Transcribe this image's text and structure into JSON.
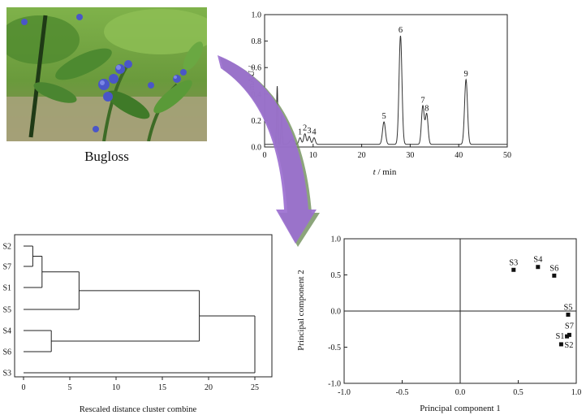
{
  "photo": {
    "caption": "Bugloss",
    "colors": {
      "leaf": "#5f9b3a",
      "leaf_dark": "#2f5e22",
      "flower": "#4a56c8",
      "soil": "#b9b08c"
    }
  },
  "arrow": {
    "color": "#9b6fd0",
    "edge_color": "#6f8f5a"
  },
  "chart_data": [
    {
      "id": "chromatogram",
      "type": "line",
      "xlabel_var": "t",
      "xlabel_unit": " / min",
      "ylabel": "mAU / ",
      "xlim": [
        0,
        50
      ],
      "ylim": [
        0,
        1.0
      ],
      "xticks": [
        0,
        10,
        20,
        30,
        40,
        50
      ],
      "yticks": [
        0.0,
        0.2,
        0.4,
        0.6,
        0.8,
        1.0
      ],
      "ytick_labels": [
        "0.0",
        "0.2",
        "0.4",
        "0.6",
        "0.8",
        "1.0"
      ],
      "baseline": 0.02,
      "peaks": [
        {
          "label": "",
          "rt": 2.6,
          "height": 0.44,
          "width": 0.12
        },
        {
          "label": "",
          "rt": 3.5,
          "height": 0.22,
          "width": 0.12
        },
        {
          "label": "",
          "rt": 5.6,
          "height": 0.04,
          "width": 0.4
        },
        {
          "label": "1",
          "rt": 7.3,
          "height": 0.05,
          "width": 0.25
        },
        {
          "label": "2",
          "rt": 8.3,
          "height": 0.08,
          "width": 0.25
        },
        {
          "label": "3",
          "rt": 9.2,
          "height": 0.06,
          "width": 0.25
        },
        {
          "label": "4",
          "rt": 10.2,
          "height": 0.05,
          "width": 0.25
        },
        {
          "label": "5",
          "rt": 24.6,
          "height": 0.17,
          "width": 0.3
        },
        {
          "label": "6",
          "rt": 28.0,
          "height": 0.82,
          "width": 0.3
        },
        {
          "label": "7",
          "rt": 32.6,
          "height": 0.29,
          "width": 0.28
        },
        {
          "label": "8",
          "rt": 33.4,
          "height": 0.23,
          "width": 0.28
        },
        {
          "label": "9",
          "rt": 41.5,
          "height": 0.49,
          "width": 0.3
        }
      ]
    },
    {
      "id": "dendrogram",
      "type": "dendrogram",
      "xlabel": "Rescaled distance cluster combine",
      "xlim": [
        0,
        25
      ],
      "xticks": [
        0,
        5,
        10,
        15,
        20,
        25
      ],
      "leaves": [
        "S2",
        "S7",
        "S1",
        "S5",
        "S4",
        "S6",
        "S3"
      ],
      "merges": [
        {
          "a": "S2",
          "b": "S7",
          "distance": 1
        },
        {
          "a": "S2+S7",
          "b": "S1",
          "distance": 2
        },
        {
          "a": "S4",
          "b": "S6",
          "distance": 3
        },
        {
          "a": "S2+S7+S1",
          "b": "S5",
          "distance": 6
        },
        {
          "a": "S2+S7+S1+S5",
          "b": "S4+S6",
          "distance": 19
        },
        {
          "a": "all",
          "b": "S3",
          "distance": 25
        }
      ]
    },
    {
      "id": "pca",
      "type": "scatter",
      "xlabel": "Principal component 1",
      "ylabel": "Principal component 2",
      "xlim": [
        -1.0,
        1.0
      ],
      "ylim": [
        -1.0,
        1.0
      ],
      "xticks": [
        -1.0,
        -0.5,
        0.0,
        0.5,
        1.0
      ],
      "yticks": [
        -1.0,
        -0.5,
        0.0,
        0.5,
        1.0
      ],
      "xtick_labels": [
        "-1.0",
        "-0.5",
        "0.0",
        "0.5",
        "1.0"
      ],
      "ytick_labels": [
        "-1.0",
        "-0.5",
        "0.0",
        "0.5",
        "1.0"
      ],
      "points": [
        {
          "label": "S3",
          "x": 0.46,
          "y": 0.57
        },
        {
          "label": "S4",
          "x": 0.67,
          "y": 0.61
        },
        {
          "label": "S6",
          "x": 0.81,
          "y": 0.49
        },
        {
          "label": "S5",
          "x": 0.93,
          "y": -0.05
        },
        {
          "label": "S7",
          "x": 0.94,
          "y": -0.33
        },
        {
          "label": "S1",
          "x": 0.92,
          "y": -0.35
        },
        {
          "label": "S2",
          "x": 0.87,
          "y": -0.46
        }
      ]
    }
  ]
}
